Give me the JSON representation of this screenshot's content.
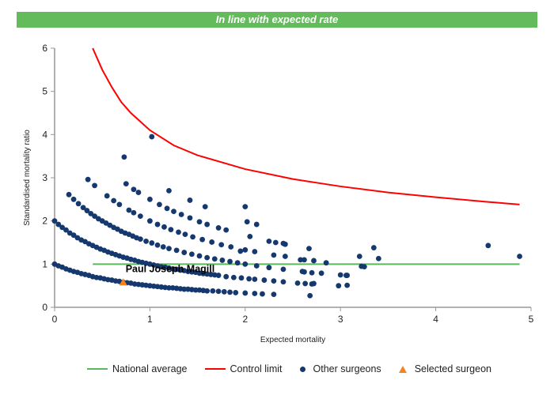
{
  "banner": {
    "text": "In line with expected rate",
    "color": "#63bb5c"
  },
  "chart_data": {
    "type": "scatter",
    "xlabel": "Expected mortality",
    "ylabel": "Standardised mortality ratio",
    "xlim": [
      0,
      5
    ],
    "ylim": [
      0,
      6
    ],
    "xticks": [
      "0",
      "1",
      "2",
      "3",
      "4",
      "5"
    ],
    "yticks": [
      "0",
      "1",
      "2",
      "3",
      "4",
      "5",
      "6"
    ],
    "grid": false,
    "legend_placement": "bottom",
    "colors": {
      "national": "#5cb85c",
      "control": "#ff0000",
      "others": "#15386e",
      "selected": "#f5821f"
    },
    "national_average": {
      "name": "National average",
      "y": 1,
      "x_range": [
        0.4,
        4.88
      ]
    },
    "control_limit": {
      "name": "Control limit",
      "points": [
        [
          0.4,
          6
        ],
        [
          0.5,
          5.5
        ],
        [
          0.6,
          5.1
        ],
        [
          0.7,
          4.75
        ],
        [
          0.8,
          4.5
        ],
        [
          1,
          4.1
        ],
        [
          1.25,
          3.75
        ],
        [
          1.5,
          3.52
        ],
        [
          2,
          3.2
        ],
        [
          2.5,
          2.97
        ],
        [
          3,
          2.8
        ],
        [
          3.5,
          2.66
        ],
        [
          4,
          2.55
        ],
        [
          4.5,
          2.45
        ],
        [
          4.88,
          2.38
        ]
      ]
    },
    "selected_surgeon": {
      "name": "Selected surgeon",
      "label": "Paul Joseph Magill",
      "x": 0.72,
      "y": 0.58
    },
    "other_surgeons": {
      "name": "Other surgeons",
      "points": [
        [
          0,
          1.0
        ],
        [
          0.04,
          0.96
        ],
        [
          0.08,
          0.93
        ],
        [
          0.12,
          0.89
        ],
        [
          0.16,
          0.86
        ],
        [
          0.2,
          0.83
        ],
        [
          0.24,
          0.81
        ],
        [
          0.28,
          0.78
        ],
        [
          0.32,
          0.76
        ],
        [
          0.36,
          0.74
        ],
        [
          0.4,
          0.71
        ],
        [
          0.44,
          0.69
        ],
        [
          0.48,
          0.68
        ],
        [
          0.52,
          0.66
        ],
        [
          0.56,
          0.64
        ],
        [
          0.6,
          0.63
        ],
        [
          0.64,
          0.61
        ],
        [
          0.68,
          0.6
        ],
        [
          0.72,
          0.58
        ],
        [
          0.76,
          0.57
        ],
        [
          0.8,
          0.56
        ],
        [
          0.84,
          0.54
        ],
        [
          0.88,
          0.53
        ],
        [
          0.92,
          0.52
        ],
        [
          0.96,
          0.51
        ],
        [
          1.0,
          0.5
        ],
        [
          1.04,
          0.49
        ],
        [
          1.08,
          0.48
        ],
        [
          1.12,
          0.47
        ],
        [
          1.16,
          0.46
        ],
        [
          1.2,
          0.45
        ],
        [
          1.24,
          0.45
        ],
        [
          1.28,
          0.44
        ],
        [
          1.32,
          0.43
        ],
        [
          1.36,
          0.42
        ],
        [
          1.4,
          0.42
        ],
        [
          1.44,
          0.41
        ],
        [
          1.48,
          0.4
        ],
        [
          1.52,
          0.4
        ],
        [
          1.56,
          0.39
        ],
        [
          1.6,
          0.38
        ],
        [
          1.66,
          0.38
        ],
        [
          1.72,
          0.37
        ],
        [
          1.78,
          0.36
        ],
        [
          1.84,
          0.35
        ],
        [
          1.9,
          0.34
        ],
        [
          2.0,
          0.33
        ],
        [
          2.1,
          0.32
        ],
        [
          2.18,
          0.31
        ],
        [
          2.3,
          0.3
        ],
        [
          2.68,
          0.27
        ],
        [
          0,
          2.0
        ],
        [
          0.04,
          1.92
        ],
        [
          0.08,
          1.85
        ],
        [
          0.12,
          1.79
        ],
        [
          0.16,
          1.72
        ],
        [
          0.2,
          1.67
        ],
        [
          0.24,
          1.61
        ],
        [
          0.28,
          1.56
        ],
        [
          0.32,
          1.52
        ],
        [
          0.36,
          1.47
        ],
        [
          0.4,
          1.43
        ],
        [
          0.44,
          1.39
        ],
        [
          0.48,
          1.35
        ],
        [
          0.52,
          1.32
        ],
        [
          0.56,
          1.28
        ],
        [
          0.6,
          1.25
        ],
        [
          0.64,
          1.22
        ],
        [
          0.68,
          1.19
        ],
        [
          0.72,
          1.16
        ],
        [
          0.76,
          1.14
        ],
        [
          0.8,
          1.11
        ],
        [
          0.84,
          1.09
        ],
        [
          0.88,
          1.06
        ],
        [
          0.92,
          1.04
        ],
        [
          0.96,
          1.02
        ],
        [
          1.0,
          1.0
        ],
        [
          1.04,
          0.98
        ],
        [
          1.08,
          0.96
        ],
        [
          1.12,
          0.94
        ],
        [
          1.16,
          0.93
        ],
        [
          1.2,
          0.91
        ],
        [
          1.24,
          0.89
        ],
        [
          1.28,
          0.88
        ],
        [
          1.32,
          0.86
        ],
        [
          1.36,
          0.85
        ],
        [
          1.4,
          0.83
        ],
        [
          1.44,
          0.82
        ],
        [
          1.48,
          0.81
        ],
        [
          1.52,
          0.79
        ],
        [
          1.56,
          0.78
        ],
        [
          1.6,
          0.77
        ],
        [
          1.64,
          0.76
        ],
        [
          1.68,
          0.75
        ],
        [
          1.72,
          0.74
        ],
        [
          1.8,
          0.71
        ],
        [
          1.88,
          0.69
        ],
        [
          1.96,
          0.68
        ],
        [
          2.04,
          0.66
        ],
        [
          2.1,
          0.65
        ],
        [
          2.2,
          0.63
        ],
        [
          2.3,
          0.61
        ],
        [
          2.4,
          0.59
        ],
        [
          2.55,
          0.56
        ],
        [
          2.7,
          0.54
        ],
        [
          0.15,
          2.61
        ],
        [
          0.2,
          2.5
        ],
        [
          0.25,
          2.4
        ],
        [
          0.3,
          2.31
        ],
        [
          0.34,
          2.24
        ],
        [
          0.38,
          2.17
        ],
        [
          0.42,
          2.11
        ],
        [
          0.46,
          2.05
        ],
        [
          0.5,
          2.0
        ],
        [
          0.54,
          1.95
        ],
        [
          0.58,
          1.9
        ],
        [
          0.62,
          1.85
        ],
        [
          0.66,
          1.81
        ],
        [
          0.7,
          1.76
        ],
        [
          0.74,
          1.72
        ],
        [
          0.78,
          1.69
        ],
        [
          0.82,
          1.65
        ],
        [
          0.86,
          1.61
        ],
        [
          0.9,
          1.58
        ],
        [
          0.96,
          1.53
        ],
        [
          1.02,
          1.49
        ],
        [
          1.08,
          1.44
        ],
        [
          1.14,
          1.4
        ],
        [
          1.2,
          1.36
        ],
        [
          1.28,
          1.32
        ],
        [
          1.36,
          1.27
        ],
        [
          1.44,
          1.23
        ],
        [
          1.52,
          1.19
        ],
        [
          1.6,
          1.15
        ],
        [
          1.68,
          1.12
        ],
        [
          1.76,
          1.09
        ],
        [
          1.84,
          1.06
        ],
        [
          1.92,
          1.03
        ],
        [
          2.0,
          1.0
        ],
        [
          2.12,
          0.96
        ],
        [
          2.25,
          0.92
        ],
        [
          2.4,
          0.88
        ],
        [
          2.6,
          0.83
        ],
        [
          2.8,
          0.79
        ],
        [
          3.0,
          0.75
        ],
        [
          3.06,
          0.74
        ],
        [
          0.35,
          2.96
        ],
        [
          0.42,
          2.82
        ],
        [
          0.55,
          2.58
        ],
        [
          0.62,
          2.47
        ],
        [
          0.68,
          2.38
        ],
        [
          0.78,
          2.25
        ],
        [
          0.83,
          2.19
        ],
        [
          0.9,
          2.11
        ],
        [
          1.0,
          2.0
        ],
        [
          1.08,
          1.92
        ],
        [
          1.15,
          1.86
        ],
        [
          1.22,
          1.8
        ],
        [
          1.3,
          1.74
        ],
        [
          1.37,
          1.69
        ],
        [
          1.45,
          1.63
        ],
        [
          1.55,
          1.57
        ],
        [
          1.65,
          1.51
        ],
        [
          1.75,
          1.45
        ],
        [
          1.85,
          1.4
        ],
        [
          2.0,
          1.33
        ],
        [
          2.1,
          1.29
        ],
        [
          2.3,
          1.21
        ],
        [
          2.62,
          1.1
        ],
        [
          3.25,
          0.94
        ],
        [
          0.75,
          2.86
        ],
        [
          0.83,
          2.73
        ],
        [
          0.88,
          2.66
        ],
        [
          1.0,
          2.5
        ],
        [
          1.1,
          2.38
        ],
        [
          1.18,
          2.29
        ],
        [
          1.25,
          2.22
        ],
        [
          1.33,
          2.15
        ],
        [
          1.42,
          2.07
        ],
        [
          1.52,
          1.98
        ],
        [
          1.6,
          1.92
        ],
        [
          1.72,
          1.84
        ],
        [
          1.8,
          1.79
        ],
        [
          2.05,
          1.64
        ],
        [
          2.42,
          1.46
        ],
        [
          2.67,
          1.36
        ],
        [
          1.2,
          2.7
        ],
        [
          0.73,
          3.48
        ],
        [
          1.02,
          3.95
        ],
        [
          1.42,
          2.48
        ],
        [
          1.58,
          2.33
        ],
        [
          2.0,
          2.33
        ],
        [
          2.02,
          1.98
        ],
        [
          2.12,
          1.92
        ],
        [
          2.25,
          1.53
        ],
        [
          2.32,
          1.5
        ],
        [
          2.4,
          1.48
        ],
        [
          3.2,
          1.18
        ],
        [
          3.22,
          0.95
        ],
        [
          3.35,
          1.38
        ],
        [
          3.4,
          1.13
        ],
        [
          4.55,
          1.43
        ],
        [
          4.88,
          1.18
        ],
        [
          2.85,
          1.03
        ],
        [
          2.58,
          1.1
        ],
        [
          2.72,
          1.08
        ],
        [
          2.42,
          1.18
        ],
        [
          1.95,
          1.3
        ],
        [
          2.98,
          0.5
        ],
        [
          3.07,
          0.51
        ],
        [
          3.07,
          0.74
        ],
        [
          2.62,
          0.82
        ],
        [
          2.7,
          0.8
        ],
        [
          2.63,
          0.55
        ],
        [
          2.72,
          0.55
        ]
      ]
    }
  },
  "legend": [
    {
      "label": "National average"
    },
    {
      "label": "Control limit"
    },
    {
      "label": "Other surgeons"
    },
    {
      "label": "Selected surgeon"
    }
  ]
}
